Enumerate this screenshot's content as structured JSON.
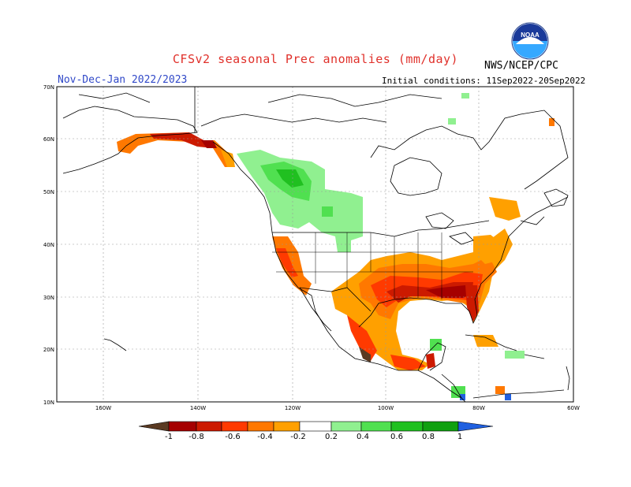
{
  "header": {
    "title": "CFSv2 seasonal Prec anomalies (mm/day)",
    "period": "Nov-Dec-Jan 2022/2023",
    "initial_conditions": "Initial conditions: 11Sep2022-20Sep2022",
    "organization": "NWS/NCEP/CPC",
    "logo_text": "NOAA"
  },
  "map": {
    "lat_labels": [
      "70N",
      "60N",
      "50N",
      "40N",
      "30N",
      "20N",
      "10N"
    ],
    "lon_labels": [
      "160W",
      "140W",
      "120W",
      "100W",
      "80W",
      "60W"
    ]
  },
  "colorbar": {
    "labels": [
      "-1",
      "-0.8",
      "-0.6",
      "-0.4",
      "-0.2",
      "0.2",
      "0.4",
      "0.6",
      "0.8",
      "1"
    ],
    "colors": [
      "#5a3a22",
      "#a50000",
      "#cc1a00",
      "#ff3a00",
      "#ff7800",
      "#ffa000",
      "#ffffff",
      "#90f090",
      "#50e050",
      "#20c020",
      "#10a010",
      "#2060e0"
    ]
  }
}
